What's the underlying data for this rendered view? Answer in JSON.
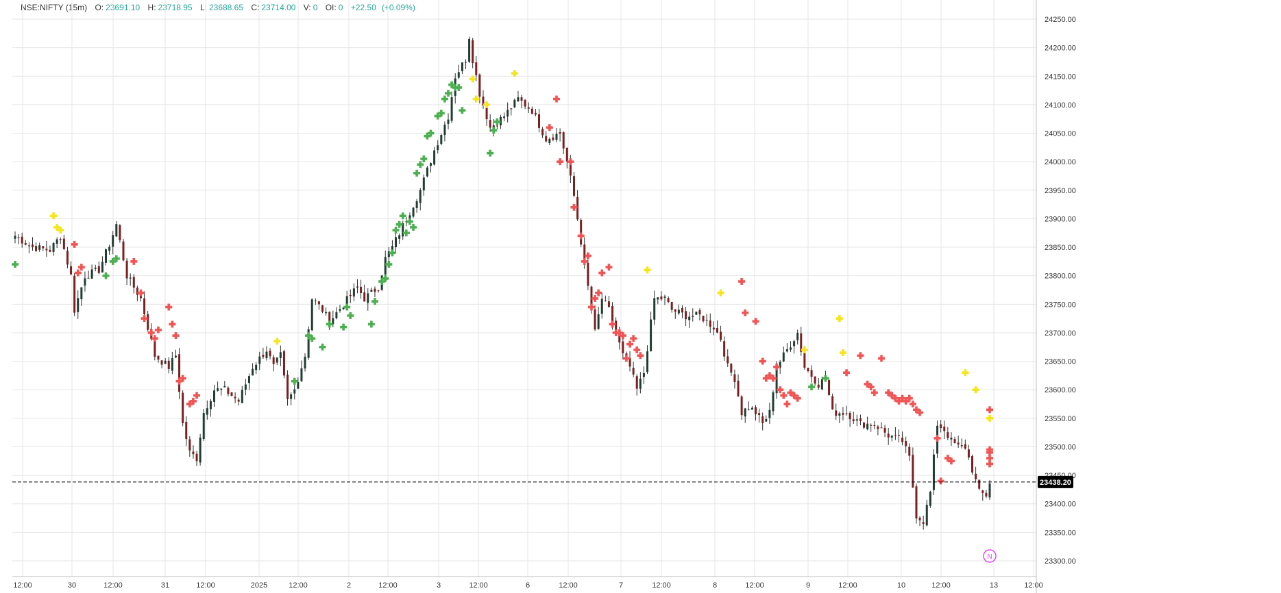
{
  "header": {
    "symbol": "NSE:NIFTY (15m)",
    "o_label": "O:",
    "o_value": "23691.10",
    "h_label": "H:",
    "h_value": "23718.95",
    "l_label": "L:",
    "l_value": "23688.65",
    "c_label": "C:",
    "c_value": "23714.00",
    "v_label": "V:",
    "v_value": "0",
    "oi_label": "OI:",
    "oi_value": "0",
    "change": "+22.50",
    "change_pct": "(+0.09%)"
  },
  "colors": {
    "up": "#26a69a",
    "down": "#ef5350",
    "candle_down_body": "#7b1f1f",
    "candle_up_body": "#1f3d32",
    "marker_green": "#4caf50",
    "marker_red": "#f05454",
    "marker_yellow": "#f5e51b",
    "grid": "#e6e6e6",
    "price_tag": "#000000",
    "badge": "#e040fb"
  },
  "chart_data": {
    "type": "candlestick",
    "title": "NSE:NIFTY (15m)",
    "ylim": [
      23270,
      24270
    ],
    "yticks": [
      23300,
      23350,
      23400,
      23450,
      23500,
      23550,
      23600,
      23650,
      23700,
      23750,
      23800,
      23850,
      23900,
      23950,
      24000,
      24050,
      24100,
      24150,
      24200,
      24250
    ],
    "ytick_labels": [
      "23300.00",
      "23350.00",
      "23400.00",
      "23450.00",
      "23500.00",
      "23550.00",
      "23600.00",
      "23650.00",
      "23700.00",
      "23750.00",
      "23800.00",
      "23850.00",
      "23900.00",
      "23950.00",
      "24000.00",
      "24050.00",
      "24100.00",
      "24150.00",
      "24200.00",
      "24250.00"
    ],
    "xtick_labels": [
      "12:00",
      "30",
      "12:00",
      "31",
      "12:00",
      "2025",
      "12:00",
      "2",
      "12:00",
      "3",
      "12:00",
      "6",
      "12:00",
      "7",
      "12:00",
      "8",
      "12:00",
      "9",
      "12:00",
      "10",
      "12:00",
      "13",
      "12:00"
    ],
    "last_price": 23438.2,
    "last_price_label": "23438.20",
    "anchors": [
      [
        0,
        23870
      ],
      [
        5,
        23850
      ],
      [
        10,
        23845
      ],
      [
        13,
        23870
      ],
      [
        16,
        23800
      ],
      [
        17,
        23740
      ],
      [
        20,
        23800
      ],
      [
        24,
        23810
      ],
      [
        27,
        23855
      ],
      [
        29,
        23890
      ],
      [
        32,
        23800
      ],
      [
        36,
        23760
      ],
      [
        40,
        23660
      ],
      [
        44,
        23640
      ],
      [
        46,
        23660
      ],
      [
        48,
        23540
      ],
      [
        50,
        23490
      ],
      [
        52,
        23480
      ],
      [
        54,
        23560
      ],
      [
        57,
        23600
      ],
      [
        60,
        23600
      ],
      [
        64,
        23580
      ],
      [
        68,
        23640
      ],
      [
        72,
        23670
      ],
      [
        74,
        23640
      ],
      [
        76,
        23660
      ],
      [
        78,
        23580
      ],
      [
        80,
        23600
      ],
      [
        83,
        23660
      ],
      [
        85,
        23760
      ],
      [
        88,
        23740
      ],
      [
        90,
        23720
      ],
      [
        94,
        23750
      ],
      [
        98,
        23780
      ],
      [
        100,
        23760
      ],
      [
        104,
        23780
      ],
      [
        106,
        23830
      ],
      [
        108,
        23850
      ],
      [
        112,
        23900
      ],
      [
        116,
        23950
      ],
      [
        120,
        24020
      ],
      [
        124,
        24080
      ],
      [
        126,
        24150
      ],
      [
        129,
        24180
      ],
      [
        130,
        24220
      ],
      [
        131,
        24180
      ],
      [
        133,
        24120
      ],
      [
        136,
        24060
      ],
      [
        140,
        24080
      ],
      [
        144,
        24110
      ],
      [
        148,
        24090
      ],
      [
        152,
        24040
      ],
      [
        156,
        24050
      ],
      [
        158,
        24000
      ],
      [
        160,
        23940
      ],
      [
        162,
        23860
      ],
      [
        164,
        23780
      ],
      [
        166,
        23700
      ],
      [
        168,
        23760
      ],
      [
        170,
        23740
      ],
      [
        172,
        23700
      ],
      [
        174,
        23660
      ],
      [
        176,
        23640
      ],
      [
        178,
        23600
      ],
      [
        180,
        23630
      ],
      [
        183,
        23760
      ],
      [
        186,
        23760
      ],
      [
        188,
        23740
      ],
      [
        192,
        23730
      ],
      [
        196,
        23730
      ],
      [
        200,
        23710
      ],
      [
        202,
        23690
      ],
      [
        204,
        23640
      ],
      [
        206,
        23620
      ],
      [
        208,
        23560
      ],
      [
        210,
        23570
      ],
      [
        212,
        23560
      ],
      [
        214,
        23540
      ],
      [
        216,
        23560
      ],
      [
        218,
        23640
      ],
      [
        220,
        23660
      ],
      [
        222,
        23680
      ],
      [
        224,
        23700
      ],
      [
        226,
        23640
      ],
      [
        230,
        23610
      ],
      [
        232,
        23620
      ],
      [
        234,
        23560
      ],
      [
        238,
        23560
      ],
      [
        242,
        23540
      ],
      [
        246,
        23540
      ],
      [
        250,
        23520
      ],
      [
        254,
        23510
      ],
      [
        256,
        23480
      ],
      [
        258,
        23380
      ],
      [
        260,
        23370
      ],
      [
        262,
        23420
      ],
      [
        264,
        23540
      ],
      [
        266,
        23530
      ],
      [
        268,
        23510
      ],
      [
        270,
        23500
      ],
      [
        272,
        23500
      ],
      [
        274,
        23460
      ],
      [
        276,
        23420
      ],
      [
        278,
        23415
      ],
      [
        279,
        23438
      ]
    ],
    "x_tick_bars": [
      3,
      18,
      46,
      74,
      102,
      131,
      158,
      186,
      214,
      242,
      270,
      297,
      325
    ],
    "markers": [
      {
        "color": "green",
        "bar": 0,
        "price": 23820
      },
      {
        "color": "yellow",
        "bar": 11,
        "price": 23905
      },
      {
        "color": "yellow",
        "bar": 12,
        "price": 23885
      },
      {
        "color": "yellow",
        "bar": 13,
        "price": 23880
      },
      {
        "color": "red",
        "bar": 17,
        "price": 23855
      },
      {
        "color": "red",
        "bar": 19,
        "price": 23815
      },
      {
        "color": "red",
        "bar": 18,
        "price": 23805
      },
      {
        "color": "green",
        "bar": 26,
        "price": 23800
      },
      {
        "color": "green",
        "bar": 28,
        "price": 23825
      },
      {
        "color": "green",
        "bar": 29,
        "price": 23830
      },
      {
        "color": "red",
        "bar": 34,
        "price": 23825
      },
      {
        "color": "red",
        "bar": 36,
        "price": 23770
      },
      {
        "color": "red",
        "bar": 37,
        "price": 23725
      },
      {
        "color": "red",
        "bar": 39,
        "price": 23700
      },
      {
        "color": "red",
        "bar": 40,
        "price": 23690
      },
      {
        "color": "red",
        "bar": 41,
        "price": 23705
      },
      {
        "color": "red",
        "bar": 44,
        "price": 23745
      },
      {
        "color": "red",
        "bar": 45,
        "price": 23715
      },
      {
        "color": "red",
        "bar": 46,
        "price": 23695
      },
      {
        "color": "red",
        "bar": 47,
        "price": 23615
      },
      {
        "color": "red",
        "bar": 48,
        "price": 23620
      },
      {
        "color": "red",
        "bar": 50,
        "price": 23575
      },
      {
        "color": "red",
        "bar": 51,
        "price": 23580
      },
      {
        "color": "red",
        "bar": 52,
        "price": 23590
      },
      {
        "color": "yellow",
        "bar": 75,
        "price": 23685
      },
      {
        "color": "green",
        "bar": 80,
        "price": 23615
      },
      {
        "color": "green",
        "bar": 84,
        "price": 23695
      },
      {
        "color": "green",
        "bar": 85,
        "price": 23690
      },
      {
        "color": "green",
        "bar": 88,
        "price": 23675
      },
      {
        "color": "green",
        "bar": 90,
        "price": 23715
      },
      {
        "color": "green",
        "bar": 94,
        "price": 23710
      },
      {
        "color": "green",
        "bar": 95,
        "price": 23745
      },
      {
        "color": "green",
        "bar": 96,
        "price": 23730
      },
      {
        "color": "green",
        "bar": 102,
        "price": 23715
      },
      {
        "color": "green",
        "bar": 103,
        "price": 23755
      },
      {
        "color": "green",
        "bar": 105,
        "price": 23790
      },
      {
        "color": "green",
        "bar": 106,
        "price": 23795
      },
      {
        "color": "green",
        "bar": 107,
        "price": 23820
      },
      {
        "color": "green",
        "bar": 108,
        "price": 23840
      },
      {
        "color": "green",
        "bar": 109,
        "price": 23880
      },
      {
        "color": "green",
        "bar": 110,
        "price": 23890
      },
      {
        "color": "green",
        "bar": 111,
        "price": 23905
      },
      {
        "color": "green",
        "bar": 112,
        "price": 23875
      },
      {
        "color": "green",
        "bar": 113,
        "price": 23895
      },
      {
        "color": "green",
        "bar": 114,
        "price": 23885
      },
      {
        "color": "green",
        "bar": 115,
        "price": 23980
      },
      {
        "color": "green",
        "bar": 116,
        "price": 23995
      },
      {
        "color": "green",
        "bar": 117,
        "price": 24005
      },
      {
        "color": "green",
        "bar": 118,
        "price": 24045
      },
      {
        "color": "green",
        "bar": 119,
        "price": 24050
      },
      {
        "color": "green",
        "bar": 121,
        "price": 24080
      },
      {
        "color": "green",
        "bar": 122,
        "price": 24085
      },
      {
        "color": "green",
        "bar": 123,
        "price": 24110
      },
      {
        "color": "green",
        "bar": 124,
        "price": 24120
      },
      {
        "color": "green",
        "bar": 125,
        "price": 24135
      },
      {
        "color": "green",
        "bar": 126,
        "price": 24130
      },
      {
        "color": "green",
        "bar": 127,
        "price": 24130
      },
      {
        "color": "green",
        "bar": 128,
        "price": 24090
      },
      {
        "color": "yellow",
        "bar": 131,
        "price": 24145
      },
      {
        "color": "yellow",
        "bar": 132,
        "price": 24110
      },
      {
        "color": "yellow",
        "bar": 135,
        "price": 24100
      },
      {
        "color": "green",
        "bar": 136,
        "price": 24015
      },
      {
        "color": "green",
        "bar": 137,
        "price": 24055
      },
      {
        "color": "green",
        "bar": 138,
        "price": 24070
      },
      {
        "color": "yellow",
        "bar": 143,
        "price": 24155
      },
      {
        "color": "red",
        "bar": 153,
        "price": 24060
      },
      {
        "color": "red",
        "bar": 155,
        "price": 24110
      },
      {
        "color": "red",
        "bar": 156,
        "price": 24000
      },
      {
        "color": "red",
        "bar": 159,
        "price": 24000
      },
      {
        "color": "red",
        "bar": 160,
        "price": 23920
      },
      {
        "color": "red",
        "bar": 162,
        "price": 23870
      },
      {
        "color": "red",
        "bar": 163,
        "price": 23825
      },
      {
        "color": "red",
        "bar": 164,
        "price": 23835
      },
      {
        "color": "red",
        "bar": 165,
        "price": 23745
      },
      {
        "color": "red",
        "bar": 166,
        "price": 23760
      },
      {
        "color": "red",
        "bar": 167,
        "price": 23770
      },
      {
        "color": "red",
        "bar": 168,
        "price": 23805
      },
      {
        "color": "red",
        "bar": 170,
        "price": 23815
      },
      {
        "color": "red",
        "bar": 171,
        "price": 23715
      },
      {
        "color": "red",
        "bar": 172,
        "price": 23700
      },
      {
        "color": "red",
        "bar": 173,
        "price": 23700
      },
      {
        "color": "red",
        "bar": 174,
        "price": 23695
      },
      {
        "color": "red",
        "bar": 176,
        "price": 23680
      },
      {
        "color": "red",
        "bar": 177,
        "price": 23690
      },
      {
        "color": "red",
        "bar": 178,
        "price": 23670
      },
      {
        "color": "red",
        "bar": 179,
        "price": 23660
      },
      {
        "color": "red",
        "bar": 175,
        "price": 23655
      },
      {
        "color": "yellow",
        "bar": 181,
        "price": 23810
      },
      {
        "color": "yellow",
        "bar": 202,
        "price": 23770
      },
      {
        "color": "red",
        "bar": 208,
        "price": 23790
      },
      {
        "color": "red",
        "bar": 209,
        "price": 23735
      },
      {
        "color": "red",
        "bar": 212,
        "price": 23720
      },
      {
        "color": "red",
        "bar": 214,
        "price": 23650
      },
      {
        "color": "red",
        "bar": 215,
        "price": 23620
      },
      {
        "color": "red",
        "bar": 216,
        "price": 23625
      },
      {
        "color": "red",
        "bar": 217,
        "price": 23620
      },
      {
        "color": "red",
        "bar": 218,
        "price": 23640
      },
      {
        "color": "red",
        "bar": 219,
        "price": 23600
      },
      {
        "color": "red",
        "bar": 220,
        "price": 23590
      },
      {
        "color": "red",
        "bar": 221,
        "price": 23575
      },
      {
        "color": "red",
        "bar": 222,
        "price": 23595
      },
      {
        "color": "red",
        "bar": 223,
        "price": 23590
      },
      {
        "color": "red",
        "bar": 224,
        "price": 23585
      },
      {
        "color": "yellow",
        "bar": 226,
        "price": 23670
      },
      {
        "color": "green",
        "bar": 228,
        "price": 23605
      },
      {
        "color": "green",
        "bar": 232,
        "price": 23620
      },
      {
        "color": "yellow",
        "bar": 236,
        "price": 23725
      },
      {
        "color": "yellow",
        "bar": 237,
        "price": 23665
      },
      {
        "color": "red",
        "bar": 238,
        "price": 23630
      },
      {
        "color": "red",
        "bar": 242,
        "price": 23660
      },
      {
        "color": "red",
        "bar": 244,
        "price": 23610
      },
      {
        "color": "red",
        "bar": 245,
        "price": 23605
      },
      {
        "color": "red",
        "bar": 246,
        "price": 23595
      },
      {
        "color": "red",
        "bar": 248,
        "price": 23655
      },
      {
        "color": "red",
        "bar": 250,
        "price": 23595
      },
      {
        "color": "red",
        "bar": 251,
        "price": 23590
      },
      {
        "color": "red",
        "bar": 252,
        "price": 23585
      },
      {
        "color": "red",
        "bar": 253,
        "price": 23580
      },
      {
        "color": "red",
        "bar": 254,
        "price": 23585
      },
      {
        "color": "red",
        "bar": 255,
        "price": 23580
      },
      {
        "color": "red",
        "bar": 256,
        "price": 23585
      },
      {
        "color": "red",
        "bar": 257,
        "price": 23575
      },
      {
        "color": "red",
        "bar": 258,
        "price": 23565
      },
      {
        "color": "red",
        "bar": 259,
        "price": 23560
      },
      {
        "color": "red",
        "bar": 264,
        "price": 23515
      },
      {
        "color": "red",
        "bar": 265,
        "price": 23440
      },
      {
        "color": "red",
        "bar": 267,
        "price": 23480
      },
      {
        "color": "red",
        "bar": 268,
        "price": 23475
      },
      {
        "color": "yellow",
        "bar": 272,
        "price": 23630
      },
      {
        "color": "yellow",
        "bar": 275,
        "price": 23600
      },
      {
        "color": "yellow",
        "bar": 281,
        "price": 23550
      },
      {
        "color": "red",
        "bar": 282,
        "price": 23565
      },
      {
        "color": "red",
        "bar": 284,
        "price": 23495
      },
      {
        "color": "red",
        "bar": 285,
        "price": 23490
      },
      {
        "color": "red",
        "bar": 286,
        "price": 23480
      },
      {
        "color": "red",
        "bar": 287,
        "price": 23470
      }
    ]
  },
  "badge": {
    "label": "N"
  }
}
